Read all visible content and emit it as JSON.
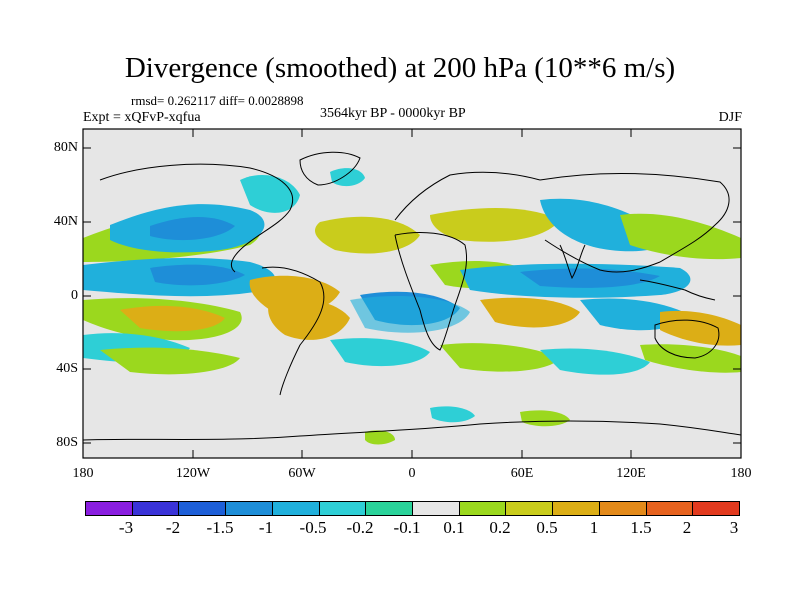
{
  "title": "Divergence (smoothed) at 200 hPa (10**6 m/s)",
  "stats": "rmsd= 0.262117  diff= 0.0028898",
  "experiment": "Expt = xQFvP-xqfua",
  "period": "3564kyr BP - 0000kyr BP",
  "season": "DJF",
  "y_axis_labels": [
    "80N",
    "40N",
    "0",
    "40S",
    "80S"
  ],
  "x_axis_labels": [
    "180",
    "120W",
    "60W",
    "0",
    "60E",
    "120E",
    "180"
  ],
  "colorbar": {
    "labels": [
      "-3",
      "-2",
      "-1.5",
      "-1",
      "-0.5",
      "-0.2",
      "-0.1",
      "0.1",
      "0.2",
      "0.5",
      "1",
      "1.5",
      "2",
      "3"
    ],
    "colors": [
      "#8a1ee0",
      "#3a33d8",
      "#1d5fd8",
      "#1e8ed8",
      "#20b0dc",
      "#2ecfd6",
      "#2ad39a",
      "#e6e6e6",
      "#9bd81e",
      "#c9cc1c",
      "#dcae16",
      "#e38a1a",
      "#e6621e",
      "#e23a1e"
    ]
  },
  "map": {
    "ocean_color": "#e6e6e6",
    "regions": [
      {
        "name": "tropical-pacific-negative",
        "level": "-1"
      },
      {
        "name": "south-america-positive",
        "level": "0.5"
      },
      {
        "name": "indian-ocean-negative",
        "level": "-1"
      },
      {
        "name": "africa-positive",
        "level": "0.5"
      }
    ]
  }
}
